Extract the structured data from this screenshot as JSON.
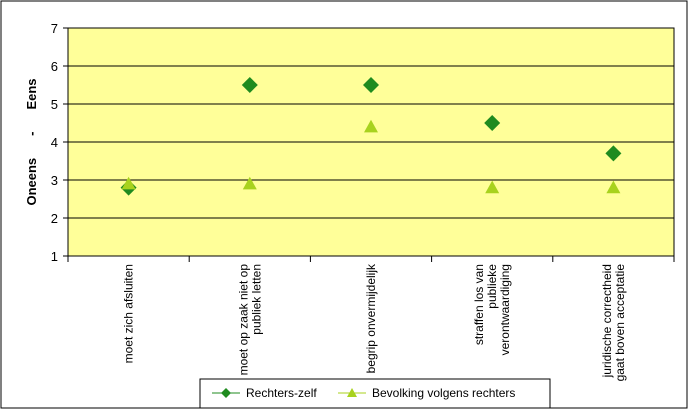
{
  "chart_data": {
    "type": "scatter",
    "categories": [
      [
        "moet zich afsluiten"
      ],
      [
        "moet op zaak niet op",
        "publiek letten"
      ],
      [
        "begrip onvermijdelijk"
      ],
      [
        "straffen los van",
        "publieke",
        "verontwaardiging"
      ],
      [
        "juridische correctheid",
        "gaat boven acceptatie"
      ]
    ],
    "ylabel": [
      "Oneens",
      "-",
      "Eens"
    ],
    "ylim": [
      1,
      7
    ],
    "yticks": [
      1,
      2,
      3,
      4,
      5,
      6,
      7
    ],
    "grid": true,
    "legend_position": "bottom",
    "series": [
      {
        "name": "Rechters-zelf",
        "marker": "diamond",
        "color": "#1f8b1f",
        "values": [
          2.8,
          5.5,
          5.5,
          4.5,
          3.7
        ]
      },
      {
        "name": "Bevolking volgens rechters",
        "marker": "triangle",
        "color": "#a8d21e",
        "values": [
          2.9,
          2.9,
          4.4,
          2.8,
          2.8
        ]
      }
    ]
  },
  "colors": {
    "plot_background": "#ffff99",
    "frame": "#000000"
  }
}
